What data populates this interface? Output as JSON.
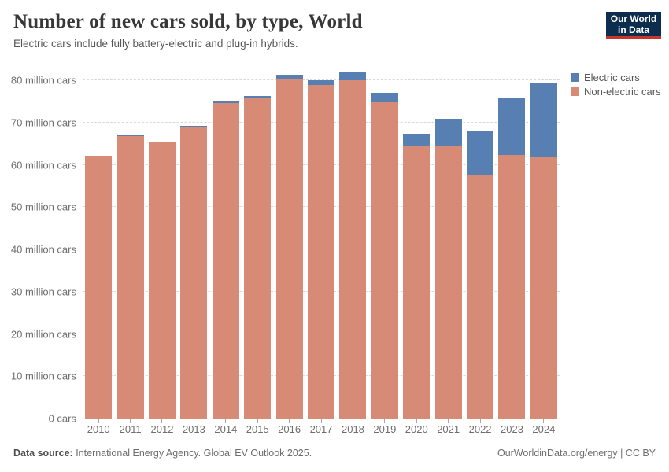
{
  "header": {
    "title": "Number of new cars sold, by type, World",
    "subtitle": "Electric cars include fully battery-electric and plug-in hybrids.",
    "logo_line1": "Our World",
    "logo_line2": "in Data"
  },
  "colors": {
    "electric": "#587fb1",
    "non_electric": "#d78b76",
    "logo_bg": "#0d2d4e",
    "logo_accent": "#cb3529",
    "gridline": "#d9d9d9",
    "axis": "#a6a6a6"
  },
  "legend": {
    "items": [
      {
        "label": "Electric cars",
        "color": "#587fb1"
      },
      {
        "label": "Non-electric cars",
        "color": "#d78b76"
      }
    ]
  },
  "chart_data": {
    "type": "bar",
    "stacked": true,
    "title": "Number of new cars sold, by type, World",
    "xlabel": "",
    "ylabel": "",
    "ylim": [
      0,
      83
    ],
    "grid": "horizontal-dashed",
    "legend_position": "right",
    "categories": [
      "2010",
      "2011",
      "2012",
      "2013",
      "2014",
      "2015",
      "2016",
      "2017",
      "2018",
      "2019",
      "2020",
      "2021",
      "2022",
      "2023",
      "2024"
    ],
    "series": [
      {
        "name": "Electric cars",
        "color": "#587fb1",
        "values": [
          0.05,
          0.07,
          0.13,
          0.22,
          0.35,
          0.55,
          0.85,
          1.2,
          2.0,
          2.2,
          2.9,
          6.6,
          10.3,
          13.6,
          17.3
        ]
      },
      {
        "name": "Non-electric cars",
        "color": "#d78b76",
        "values": [
          62.1,
          66.9,
          65.4,
          69.0,
          74.7,
          75.8,
          80.4,
          78.9,
          80.0,
          74.8,
          64.4,
          64.3,
          57.6,
          62.3,
          62.0
        ]
      }
    ],
    "yticks": [
      {
        "value": 0,
        "label": "0 cars"
      },
      {
        "value": 10,
        "label": "10 million cars"
      },
      {
        "value": 20,
        "label": "20 million cars"
      },
      {
        "value": 30,
        "label": "30 million cars"
      },
      {
        "value": 40,
        "label": "40 million cars"
      },
      {
        "value": 50,
        "label": "50 million cars"
      },
      {
        "value": 60,
        "label": "60 million cars"
      },
      {
        "value": 70,
        "label": "70 million cars"
      },
      {
        "value": 80,
        "label": "80 million cars"
      }
    ]
  },
  "footer": {
    "source_label": "Data source:",
    "source_text": "International Energy Agency. Global EV Outlook 2025.",
    "right_text": "OurWorldinData.org/energy | CC BY"
  }
}
